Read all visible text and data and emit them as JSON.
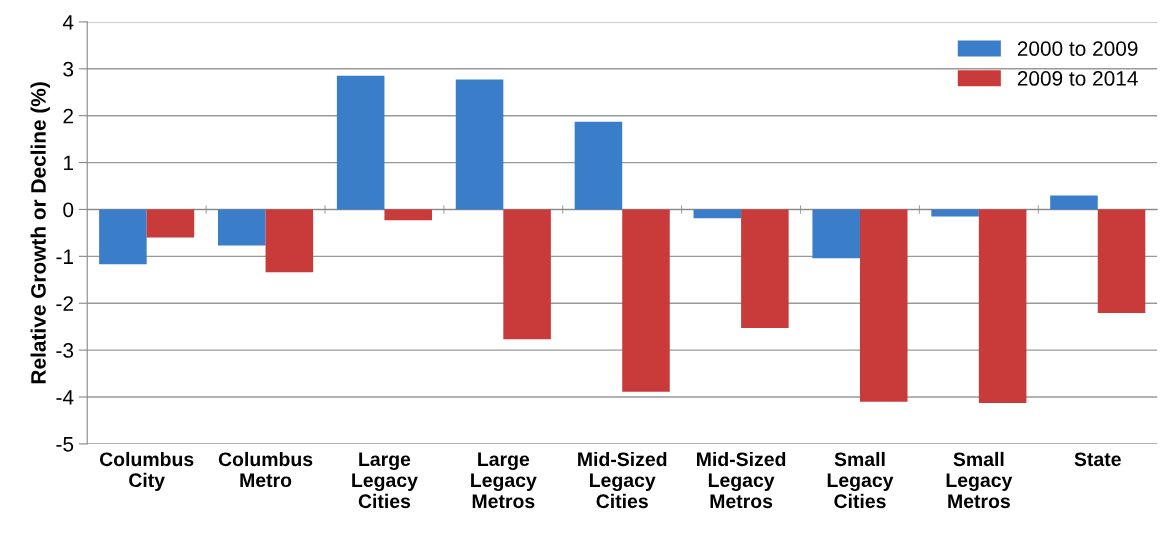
{
  "chart_data": {
    "type": "bar",
    "ylabel": "Relative Growth or Decline (%)",
    "categories": [
      "Columbus\nCity",
      "Columbus\nMetro",
      "Large\nLegacy\nCities",
      "Large\nLegacy\nMetros",
      "Mid-Sized\nLegacy\nCities",
      "Mid-Sized\nLegacy\nMetros",
      "Small\nLegacy\nCities",
      "Small\nLegacy\nMetros",
      "State"
    ],
    "series": [
      {
        "name": "2000 to 2009",
        "color": "#3a7dc9",
        "values": [
          -1.17,
          -0.77,
          2.85,
          2.77,
          1.87,
          -0.19,
          -1.04,
          -0.15,
          0.3
        ]
      },
      {
        "name": "2009 to 2014",
        "color": "#c83b3a",
        "values": [
          -0.6,
          -1.34,
          -0.23,
          -2.77,
          -3.89,
          -2.53,
          -4.1,
          -4.13,
          -2.21
        ]
      }
    ],
    "ylim": [
      -5,
      4
    ],
    "yticks": [
      -5,
      -4,
      -3,
      -2,
      -1,
      0,
      1,
      2,
      3,
      4
    ],
    "grid": "y",
    "legend": "top right"
  }
}
